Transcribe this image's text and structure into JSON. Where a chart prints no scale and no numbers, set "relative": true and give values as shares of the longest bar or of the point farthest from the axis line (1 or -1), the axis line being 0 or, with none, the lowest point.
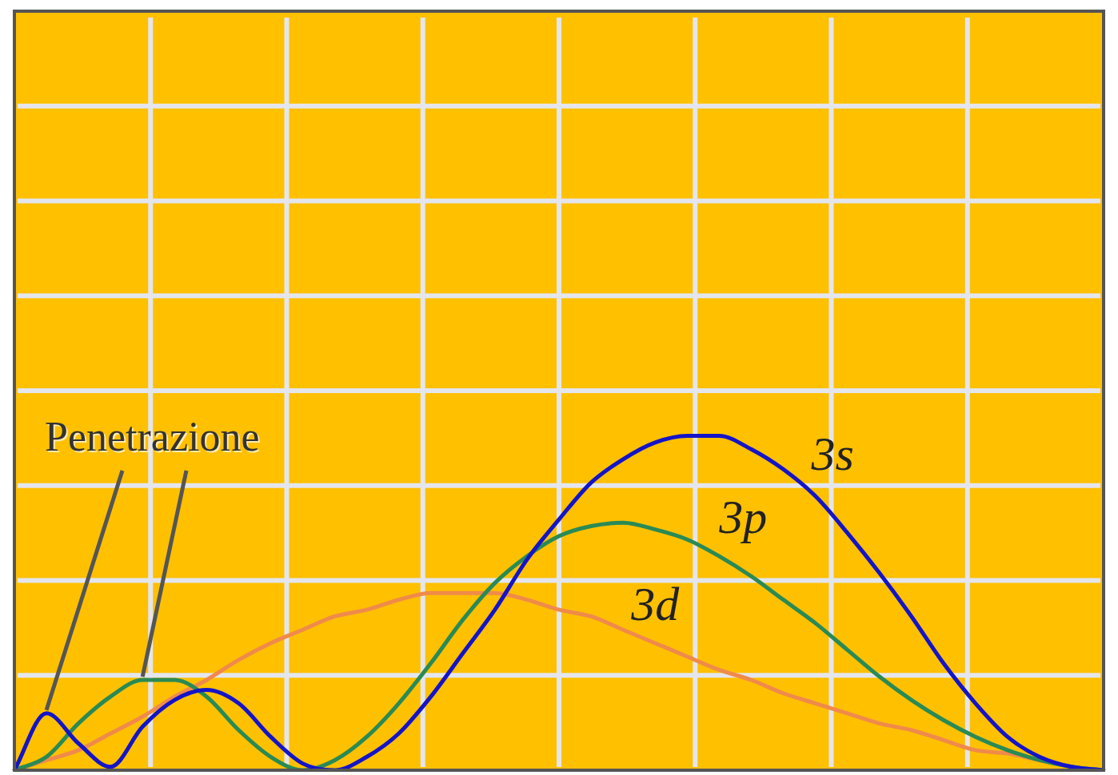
{
  "chart_data": {
    "type": "line",
    "relative": true,
    "grid": true,
    "legend": false,
    "marker": "none",
    "line_style": "solid",
    "categories": [
      null,
      null,
      null,
      null,
      null,
      null,
      null,
      null,
      null,
      null,
      null,
      null,
      null,
      null,
      null,
      null,
      null,
      null,
      null,
      null,
      null,
      null,
      null,
      null,
      null,
      null,
      null,
      null,
      null,
      null,
      null,
      null,
      null,
      null,
      null
    ],
    "series": [
      {
        "name": "3s",
        "color": "#1414c8",
        "values": [
          0,
          0.17,
          0.08,
          0.01,
          0.13,
          0.21,
          0.24,
          0.2,
          0.1,
          0.02,
          0,
          0.04,
          0.11,
          0.22,
          0.35,
          0.48,
          0.63,
          0.75,
          0.86,
          0.93,
          0.98,
          1,
          1,
          0.96,
          0.9,
          0.82,
          0.71,
          0.59,
          0.46,
          0.32,
          0.2,
          0.1,
          0.04,
          0.01,
          0
        ]
      },
      {
        "name": "3p",
        "color": "#2a8a55",
        "values": [
          0,
          0.04,
          0.14,
          0.22,
          0.27,
          0.27,
          0.22,
          0.12,
          0.04,
          0,
          0.03,
          0.1,
          0.2,
          0.32,
          0.45,
          0.56,
          0.64,
          0.7,
          0.73,
          0.74,
          0.72,
          0.69,
          0.64,
          0.58,
          0.51,
          0.44,
          0.36,
          0.28,
          0.21,
          0.15,
          0.1,
          0.06,
          0.03,
          0.01,
          0
        ]
      },
      {
        "name": "3d",
        "color": "#f08a4a",
        "values": [
          0,
          0.03,
          0.06,
          0.11,
          0.16,
          0.22,
          0.27,
          0.33,
          0.38,
          0.42,
          0.46,
          0.48,
          0.51,
          0.53,
          0.53,
          0.53,
          0.51,
          0.48,
          0.46,
          0.42,
          0.38,
          0.34,
          0.3,
          0.27,
          0.23,
          0.2,
          0.17,
          0.14,
          0.12,
          0.09,
          0.06,
          0.05,
          0.03,
          0.01,
          0
        ]
      }
    ],
    "annotations": [
      "Penetrazione"
    ]
  }
}
